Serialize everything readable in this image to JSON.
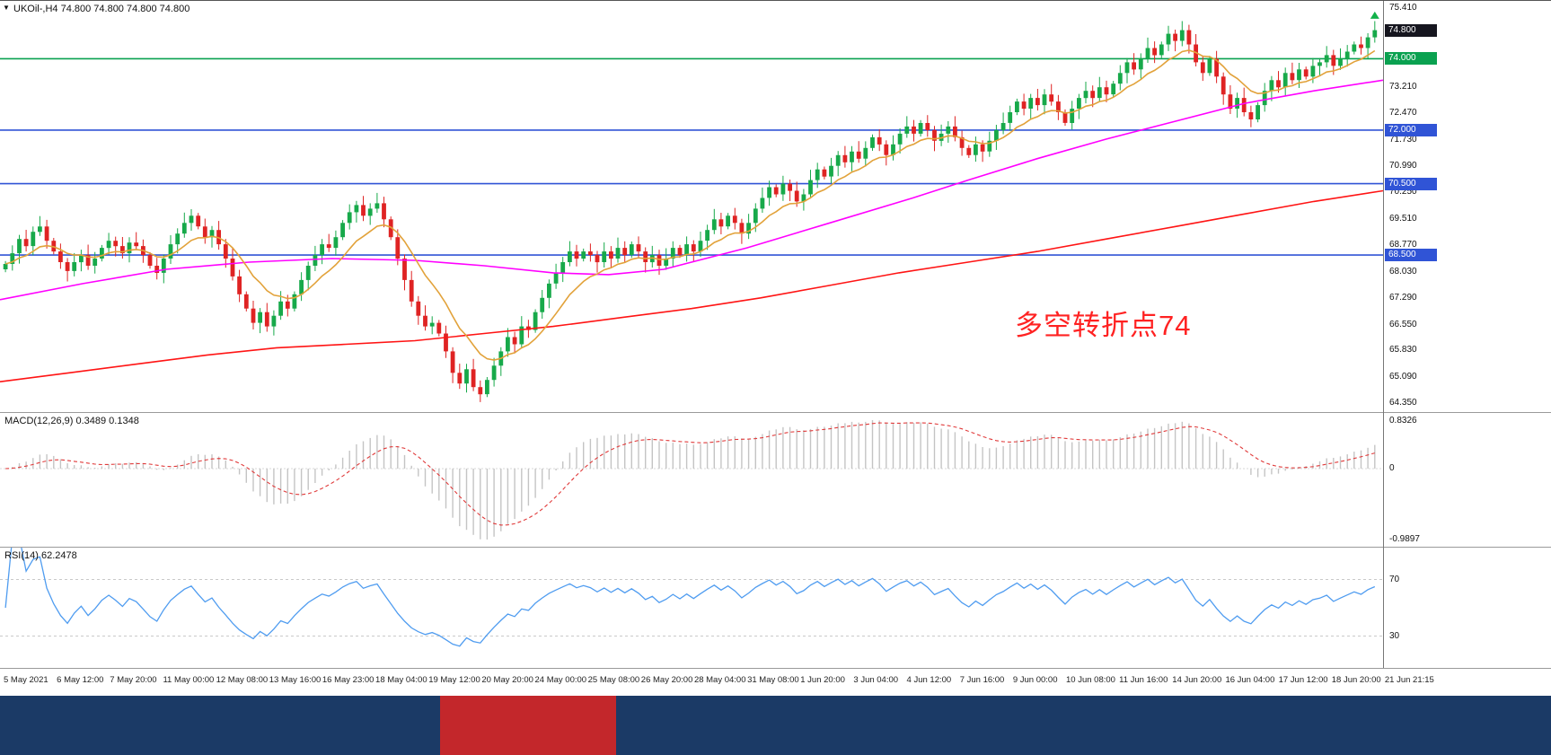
{
  "window": {
    "expander_icon": "▼"
  },
  "chart": {
    "title": "UKOil-,H4",
    "quote_line": "74.800 74.800 74.800 74.800"
  },
  "chart_data": {
    "type": "candlestick",
    "symbol": "UKOil-",
    "timeframe": "H4",
    "title": "UKOil-,H4 74.800 74.800 74.800 74.800",
    "price_axis": {
      "min": 64.1,
      "max": 75.62,
      "ticks": [
        "75.410",
        "73.210",
        "72.470",
        "71.730",
        "70.990",
        "70.250",
        "69.510",
        "68.770",
        "68.030",
        "67.290",
        "66.550",
        "65.830",
        "65.090",
        "64.350"
      ]
    },
    "x_ticks": [
      "5 May 2021",
      "6 May 12:00",
      "7 May 20:00",
      "11 May 00:00",
      "12 May 08:00",
      "13 May 16:00",
      "16 May 23:00",
      "18 May 04:00",
      "19 May 12:00",
      "20 May 20:00",
      "24 May 00:00",
      "25 May 08:00",
      "26 May 20:00",
      "28 May 04:00",
      "31 May 08:00",
      "1 Jun 20:00",
      "3 Jun 04:00",
      "4 Jun 12:00",
      "7 Jun 16:00",
      "9 Jun 00:00",
      "10 Jun 08:00",
      "11 Jun 16:00",
      "14 Jun 20:00",
      "16 Jun 04:00",
      "17 Jun 12:00",
      "18 Jun 20:00",
      "21 Jun 21:15"
    ],
    "closes": [
      68.25,
      68.55,
      68.95,
      68.75,
      69.15,
      69.3,
      68.9,
      68.6,
      68.3,
      68.05,
      68.3,
      68.5,
      68.2,
      68.4,
      68.7,
      68.9,
      68.75,
      68.55,
      68.85,
      68.75,
      68.5,
      68.2,
      68.0,
      68.4,
      68.8,
      69.1,
      69.4,
      69.6,
      69.3,
      69.0,
      69.2,
      68.8,
      68.4,
      67.9,
      67.4,
      67.0,
      66.6,
      66.9,
      66.5,
      66.8,
      67.2,
      67.0,
      67.4,
      67.8,
      68.2,
      68.5,
      68.8,
      68.7,
      69.0,
      69.4,
      69.7,
      69.9,
      69.6,
      69.8,
      69.95,
      69.5,
      69.0,
      68.4,
      67.8,
      67.2,
      66.8,
      66.5,
      66.6,
      66.3,
      65.8,
      65.2,
      64.9,
      65.3,
      64.8,
      64.6,
      65.0,
      65.4,
      65.8,
      66.2,
      66.0,
      66.5,
      66.4,
      66.9,
      67.3,
      67.7,
      68.0,
      68.3,
      68.6,
      68.4,
      68.6,
      68.5,
      68.3,
      68.6,
      68.4,
      68.7,
      68.5,
      68.8,
      68.6,
      68.3,
      68.5,
      68.2,
      68.4,
      68.7,
      68.5,
      68.8,
      68.6,
      68.9,
      69.2,
      69.5,
      69.3,
      69.6,
      69.4,
      69.1,
      69.4,
      69.8,
      70.1,
      70.4,
      70.2,
      70.5,
      70.3,
      70.0,
      70.2,
      70.6,
      70.9,
      70.7,
      71.0,
      71.3,
      71.1,
      71.4,
      71.2,
      71.5,
      71.8,
      71.6,
      71.3,
      71.6,
      71.9,
      72.1,
      71.9,
      72.2,
      72.0,
      71.7,
      71.9,
      72.1,
      71.8,
      71.5,
      71.3,
      71.6,
      71.4,
      71.7,
      72.0,
      72.2,
      72.5,
      72.8,
      72.6,
      72.9,
      72.7,
      73.0,
      72.8,
      72.5,
      72.2,
      72.6,
      72.9,
      73.1,
      72.9,
      73.2,
      73.0,
      73.3,
      73.6,
      73.9,
      73.7,
      74.0,
      74.3,
      74.1,
      74.4,
      74.7,
      74.5,
      74.8,
      74.4,
      73.9,
      73.6,
      74.0,
      73.5,
      73.0,
      72.6,
      72.9,
      72.5,
      72.3,
      72.7,
      73.1,
      73.4,
      73.2,
      73.6,
      73.4,
      73.7,
      73.5,
      73.8,
      73.9,
      74.1,
      73.8,
      74.0,
      74.2,
      74.4,
      74.3,
      74.6,
      74.8
    ],
    "first_open": 68.1,
    "candle_colors": {
      "up": "#17a94a",
      "down": "#df2323"
    },
    "hlines": [
      {
        "price": 74.0,
        "label": "74.000",
        "color": "#0aa150"
      },
      {
        "price": 72.0,
        "label": "72.000",
        "color": "#3054d6"
      },
      {
        "price": 70.5,
        "label": "70.500",
        "color": "#3054d6"
      },
      {
        "price": 68.5,
        "label": "68.500",
        "color": "#3054d6"
      }
    ],
    "last_price": {
      "price": 74.8,
      "label": "74.800",
      "box_color": "#16161f"
    },
    "moving_averages": {
      "fast": {
        "color": "#e2a23a",
        "period": 10
      },
      "mid": {
        "color": "#ff00ff",
        "points": [
          [
            0,
            67.25
          ],
          [
            0.06,
            67.7
          ],
          [
            0.12,
            68.1
          ],
          [
            0.18,
            68.3
          ],
          [
            0.24,
            68.4
          ],
          [
            0.3,
            68.35
          ],
          [
            0.35,
            68.2
          ],
          [
            0.4,
            68.0
          ],
          [
            0.44,
            67.95
          ],
          [
            0.48,
            68.1
          ],
          [
            0.54,
            68.7
          ],
          [
            0.6,
            69.4
          ],
          [
            0.66,
            70.1
          ],
          [
            0.7,
            70.6
          ],
          [
            0.75,
            71.2
          ],
          [
            0.8,
            71.75
          ],
          [
            0.85,
            72.25
          ],
          [
            0.9,
            72.75
          ],
          [
            0.95,
            73.1
          ],
          [
            1,
            73.4
          ]
        ]
      },
      "slow": {
        "color": "#ff1414",
        "points": [
          [
            0,
            64.95
          ],
          [
            0.05,
            65.2
          ],
          [
            0.1,
            65.45
          ],
          [
            0.15,
            65.7
          ],
          [
            0.2,
            65.9
          ],
          [
            0.25,
            66.0
          ],
          [
            0.3,
            66.1
          ],
          [
            0.35,
            66.3
          ],
          [
            0.4,
            66.5
          ],
          [
            0.45,
            66.75
          ],
          [
            0.5,
            67.0
          ],
          [
            0.55,
            67.3
          ],
          [
            0.6,
            67.65
          ],
          [
            0.65,
            68.0
          ],
          [
            0.7,
            68.3
          ],
          [
            0.75,
            68.6
          ],
          [
            0.8,
            68.95
          ],
          [
            0.85,
            69.3
          ],
          [
            0.9,
            69.65
          ],
          [
            0.95,
            70.0
          ],
          [
            1,
            70.3
          ]
        ]
      }
    },
    "annotation": {
      "text": "多空转折点74",
      "color": "#ff2222"
    },
    "indicators": {
      "macd": {
        "label": "MACD(12,26,9)",
        "values": "0.3489 0.1348",
        "axis_max": "0.8326",
        "axis_zero": "0",
        "axis_min": "-0.9897",
        "fast": 12,
        "slow": 26,
        "signal": 9,
        "histogram_color": "#c4c4c4",
        "signal_color": "#e03a3a"
      },
      "rsi": {
        "label": "RSI(14)",
        "value": "62.2478",
        "period": 14,
        "levels": [
          70,
          30
        ],
        "line_color": "#4f9cf0"
      }
    }
  }
}
